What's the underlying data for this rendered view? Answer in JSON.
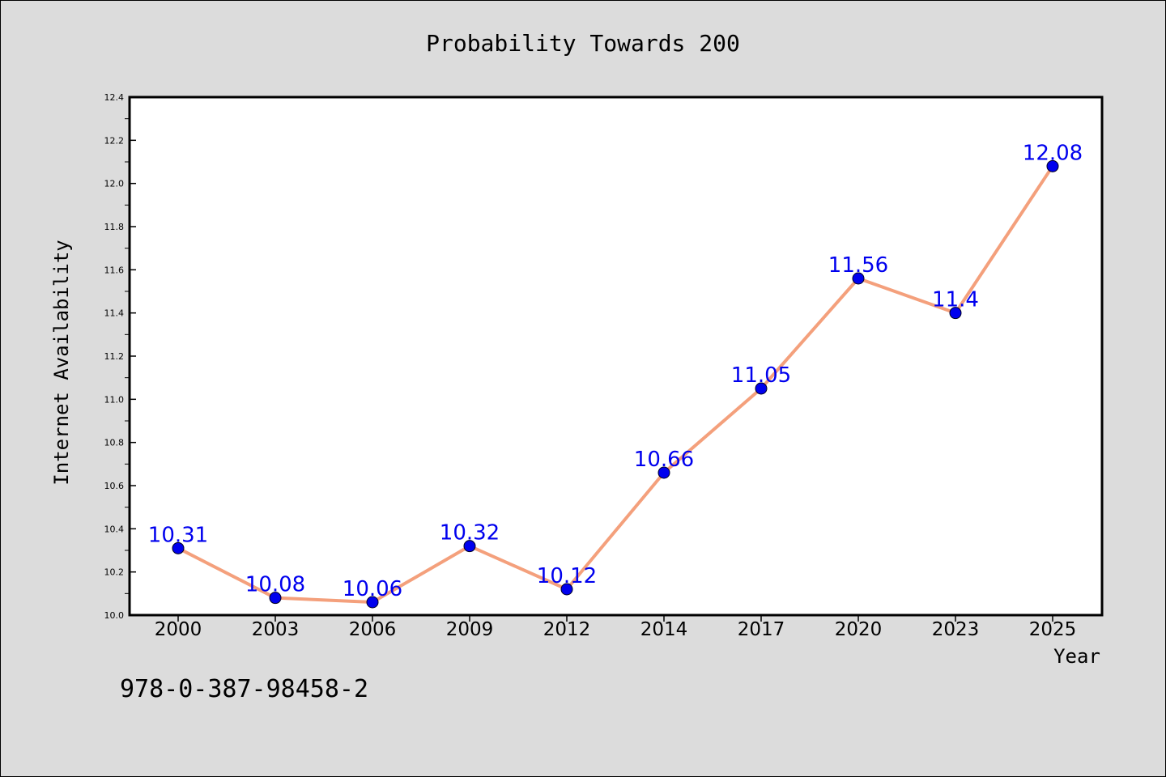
{
  "chart_data": {
    "type": "line",
    "title": "Probability Towards 200",
    "xlabel": "Year",
    "ylabel": "Internet Availability",
    "categories": [
      "2000",
      "2003",
      "2006",
      "2009",
      "2012",
      "2014",
      "2017",
      "2020",
      "2023",
      "2025"
    ],
    "series": [
      {
        "values": [
          10.31,
          10.08,
          10.06,
          10.32,
          10.12,
          10.66,
          11.05,
          11.56,
          11.4,
          12.08
        ],
        "labels": [
          "10.31",
          "10.08",
          "10.06",
          "10.32",
          "10.12",
          "10.66",
          "11.05",
          "11.56",
          "11.4",
          "12.08"
        ],
        "line_color": "#f4a07c",
        "marker_color": "#0000ee"
      }
    ],
    "ylim": [
      10.0,
      12.4
    ],
    "yticks": [
      "10.0",
      "10.2",
      "10.4",
      "10.6",
      "10.8",
      "11.0",
      "11.2",
      "11.4",
      "11.6",
      "11.8",
      "12.0",
      "12.2",
      "12.4"
    ],
    "label_color": "#0000ee",
    "grid": false,
    "legend": "none"
  },
  "footnote": "978-0-387-98458-2"
}
